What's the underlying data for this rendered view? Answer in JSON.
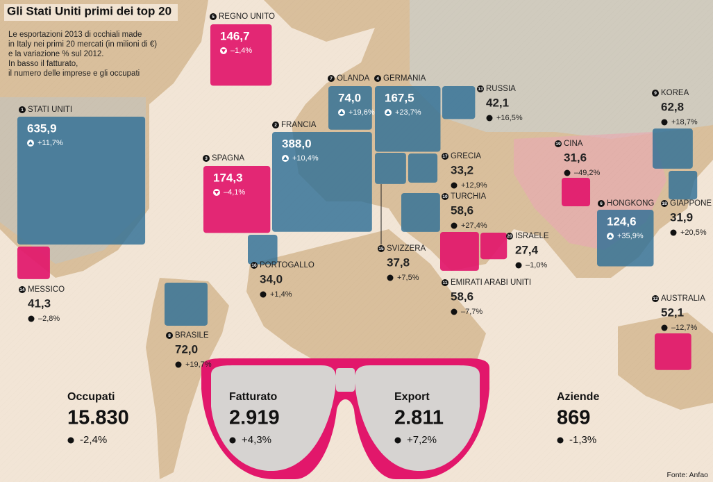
{
  "header": {
    "title": "Gli Stati Uniti primi dei top 20",
    "subtitle": [
      "Le esportazioni 2013 di occhiali made",
      "in Italy nei primi 20 mercati (in milioni di €)",
      "e la variazione % sul 2012.",
      "In basso il fatturato,",
      "il numero delle imprese e gli occupati"
    ]
  },
  "markets": [
    {
      "rank": 1,
      "name": "STATI UNITI",
      "value": {
        "value": 635.9,
        "label": "635,9"
      },
      "change": {
        "value": 11.7,
        "label": "+11,7%"
      }
    },
    {
      "rank": 2,
      "name": "FRANCIA",
      "value": {
        "value": 388.0,
        "label": "388,0"
      },
      "change": {
        "value": 10.4,
        "label": "+10,4%"
      }
    },
    {
      "rank": 3,
      "name": "SPAGNA",
      "value": {
        "value": 174.3,
        "label": "174,3"
      },
      "change": {
        "value": -4.1,
        "label": "–4,1%"
      }
    },
    {
      "rank": 4,
      "name": "GERMANIA",
      "value": {
        "value": 167.5,
        "label": "167,5"
      },
      "change": {
        "value": 23.7,
        "label": "+23,7%"
      }
    },
    {
      "rank": 5,
      "name": "REGNO UNITO",
      "value": {
        "value": 146.7,
        "label": "146,7"
      },
      "change": {
        "value": -1.4,
        "label": "–1,4%"
      }
    },
    {
      "rank": 6,
      "name": "HONGKONG",
      "value": {
        "value": 124.6,
        "label": "124,6"
      },
      "change": {
        "value": 35.9,
        "label": "+35,9%"
      }
    },
    {
      "rank": 7,
      "name": "OLANDA",
      "value": {
        "value": 74.0,
        "label": "74,0"
      },
      "change": {
        "value": 19.6,
        "label": "+19,6%"
      }
    },
    {
      "rank": 8,
      "name": "BRASILE",
      "value": {
        "value": 72.0,
        "label": "72,0"
      },
      "change": {
        "value": 19.7,
        "label": "+19,7%"
      }
    },
    {
      "rank": 9,
      "name": "KOREA",
      "value": {
        "value": 62.8,
        "label": "62,8"
      },
      "change": {
        "value": 18.7,
        "label": "+18,7%"
      }
    },
    {
      "rank": 10,
      "name": "TURCHIA",
      "value": {
        "value": 58.6,
        "label": "58,6"
      },
      "change": {
        "value": 27.4,
        "label": "+27,4%"
      }
    },
    {
      "rank": 11,
      "name": "EMIRATI ARABI UNITI",
      "value": {
        "value": 58.6,
        "label": "58,6"
      },
      "change": {
        "value": -7.7,
        "label": "–7,7%"
      }
    },
    {
      "rank": 12,
      "name": "AUSTRALIA",
      "value": {
        "value": 52.1,
        "label": "52,1"
      },
      "change": {
        "value": -12.7,
        "label": "–12,7%"
      }
    },
    {
      "rank": 13,
      "name": "RUSSIA",
      "value": {
        "value": 42.1,
        "label": "42,1"
      },
      "change": {
        "value": 16.5,
        "label": "+16,5%"
      }
    },
    {
      "rank": 14,
      "name": "MESSICO",
      "value": {
        "value": 41.3,
        "label": "41,3"
      },
      "change": {
        "value": -2.8,
        "label": "–2,8%"
      }
    },
    {
      "rank": 15,
      "name": "SVIZZERA",
      "value": {
        "value": 37.8,
        "label": "37,8"
      },
      "change": {
        "value": 7.5,
        "label": "+7,5%"
      }
    },
    {
      "rank": 16,
      "name": "PORTOGALLO",
      "value": {
        "value": 34.0,
        "label": "34,0"
      },
      "change": {
        "value": 1.4,
        "label": "+1,4%"
      }
    },
    {
      "rank": 17,
      "name": "GRECIA",
      "value": {
        "value": 33.2,
        "label": "33,2"
      },
      "change": {
        "value": 12.9,
        "label": "+12,9%"
      }
    },
    {
      "rank": 18,
      "name": "GIAPPONE",
      "value": {
        "value": 31.9,
        "label": "31,9"
      },
      "change": {
        "value": 20.5,
        "label": "+20,5%"
      }
    },
    {
      "rank": 19,
      "name": "CINA",
      "value": {
        "value": 31.6,
        "label": "31,6"
      },
      "change": {
        "value": -49.2,
        "label": "–49,2%"
      }
    },
    {
      "rank": 20,
      "name": "ISRAELE",
      "value": {
        "value": 27.4,
        "label": "27,4"
      },
      "change": {
        "value": -1.0,
        "label": "–1,0%"
      }
    }
  ],
  "stats": [
    {
      "label": "Occupati",
      "value": "15.830",
      "change": "-2,4%"
    },
    {
      "label": "Fatturato",
      "value": "2.919",
      "change": "+4,3%"
    },
    {
      "label": "Export",
      "value": "2.811",
      "change": "+7,2%"
    },
    {
      "label": "Aziende",
      "value": "869",
      "change": "-1,3%"
    }
  ],
  "source": "Fonte: Anfao"
}
